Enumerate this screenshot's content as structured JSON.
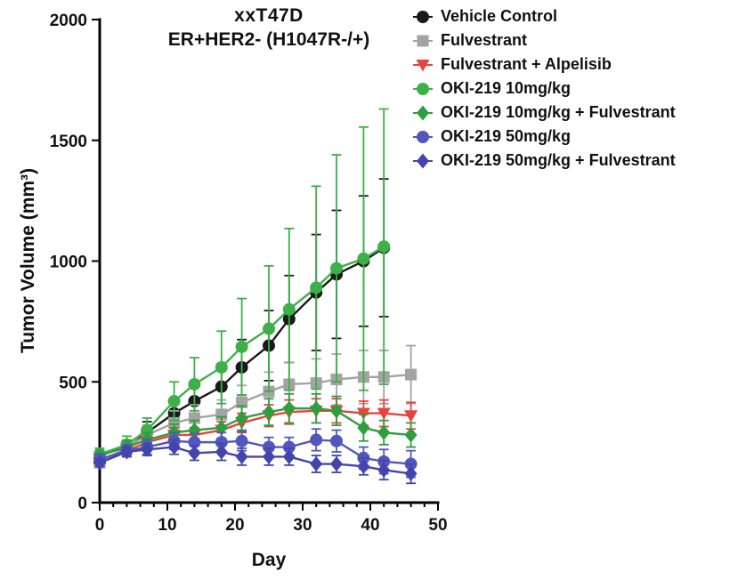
{
  "chart_data": {
    "type": "line",
    "title": "xxT47D",
    "subtitle": "ER+HER2- (H1047R-/+)",
    "xlabel": "Day",
    "ylabel": "Tumor Volume (mm³)",
    "xlim": [
      0,
      50
    ],
    "ylim": [
      0,
      2000
    ],
    "x_ticks": [
      0,
      10,
      20,
      30,
      40,
      50
    ],
    "x_minor_step": 2,
    "y_ticks": [
      0,
      500,
      1000,
      1500,
      2000
    ],
    "grid": false,
    "legend_position": "top-right",
    "series": [
      {
        "name": "Vehicle Control",
        "color": "#1a1a1a",
        "marker": "circle",
        "x": [
          0,
          4,
          7,
          11,
          14,
          18,
          21,
          25,
          28,
          32,
          35,
          39,
          42
        ],
        "values": [
          165,
          225,
          290,
          370,
          420,
          480,
          560,
          650,
          760,
          870,
          945,
          1000,
          1055
        ],
        "errors": [
          20,
          30,
          45,
          60,
          75,
          95,
          115,
          145,
          180,
          240,
          265,
          270,
          285
        ]
      },
      {
        "name": "Fulvestrant",
        "color": "#a3a3a3",
        "marker": "square",
        "x": [
          0,
          4,
          7,
          11,
          14,
          18,
          21,
          25,
          28,
          32,
          35,
          39,
          42,
          46
        ],
        "values": [
          165,
          230,
          280,
          330,
          350,
          365,
          415,
          460,
          490,
          495,
          510,
          520,
          520,
          530
        ],
        "errors": [
          20,
          30,
          40,
          50,
          55,
          60,
          70,
          80,
          90,
          100,
          105,
          110,
          110,
          120
        ]
      },
      {
        "name": "Fulvestrant + Alpelisib",
        "color": "#e8433f",
        "marker": "triangle-down",
        "x": [
          0,
          4,
          7,
          11,
          14,
          18,
          21,
          25,
          28,
          32,
          35,
          39,
          42,
          46
        ],
        "values": [
          165,
          215,
          250,
          280,
          280,
          300,
          330,
          360,
          375,
          380,
          380,
          370,
          370,
          360
        ],
        "errors": [
          15,
          20,
          25,
          30,
          30,
          35,
          40,
          45,
          50,
          50,
          50,
          50,
          55,
          55
        ]
      },
      {
        "name": "OKI-219 10mg/kg",
        "color": "#3db049",
        "marker": "circle",
        "x": [
          0,
          4,
          7,
          11,
          14,
          18,
          21,
          25,
          28,
          32,
          35,
          39,
          42
        ],
        "values": [
          200,
          240,
          300,
          420,
          490,
          560,
          645,
          720,
          800,
          890,
          970,
          1010,
          1060
        ],
        "errors": [
          25,
          35,
          50,
          80,
          110,
          150,
          200,
          260,
          335,
          420,
          470,
          545,
          570
        ]
      },
      {
        "name": "OKI-219 10mg/kg + Fulvestrant",
        "color": "#2f9e3e",
        "marker": "diamond",
        "x": [
          0,
          4,
          7,
          11,
          14,
          18,
          21,
          25,
          28,
          32,
          35,
          39,
          42,
          46
        ],
        "values": [
          195,
          230,
          260,
          290,
          300,
          310,
          350,
          375,
          390,
          390,
          380,
          310,
          290,
          280
        ],
        "errors": [
          20,
          25,
          30,
          35,
          40,
          45,
          50,
          55,
          60,
          60,
          60,
          55,
          50,
          50
        ]
      },
      {
        "name": "OKI-219 50mg/kg",
        "color": "#5157bd",
        "marker": "circle",
        "x": [
          0,
          4,
          7,
          11,
          14,
          18,
          21,
          25,
          28,
          32,
          35,
          39,
          42,
          46
        ],
        "values": [
          180,
          215,
          230,
          255,
          250,
          250,
          255,
          230,
          230,
          260,
          255,
          185,
          170,
          160
        ],
        "errors": [
          20,
          25,
          30,
          35,
          35,
          40,
          40,
          40,
          40,
          45,
          45,
          45,
          50,
          55
        ]
      },
      {
        "name": "OKI-219 50mg/kg + Fulvestrant",
        "color": "#4345ad",
        "marker": "diamond",
        "x": [
          0,
          4,
          7,
          11,
          14,
          18,
          21,
          25,
          28,
          32,
          35,
          39,
          42,
          46
        ],
        "values": [
          165,
          210,
          220,
          230,
          205,
          210,
          190,
          190,
          190,
          160,
          160,
          150,
          135,
          120
        ],
        "errors": [
          15,
          20,
          25,
          30,
          30,
          35,
          35,
          35,
          35,
          35,
          35,
          35,
          40,
          40
        ]
      }
    ]
  }
}
